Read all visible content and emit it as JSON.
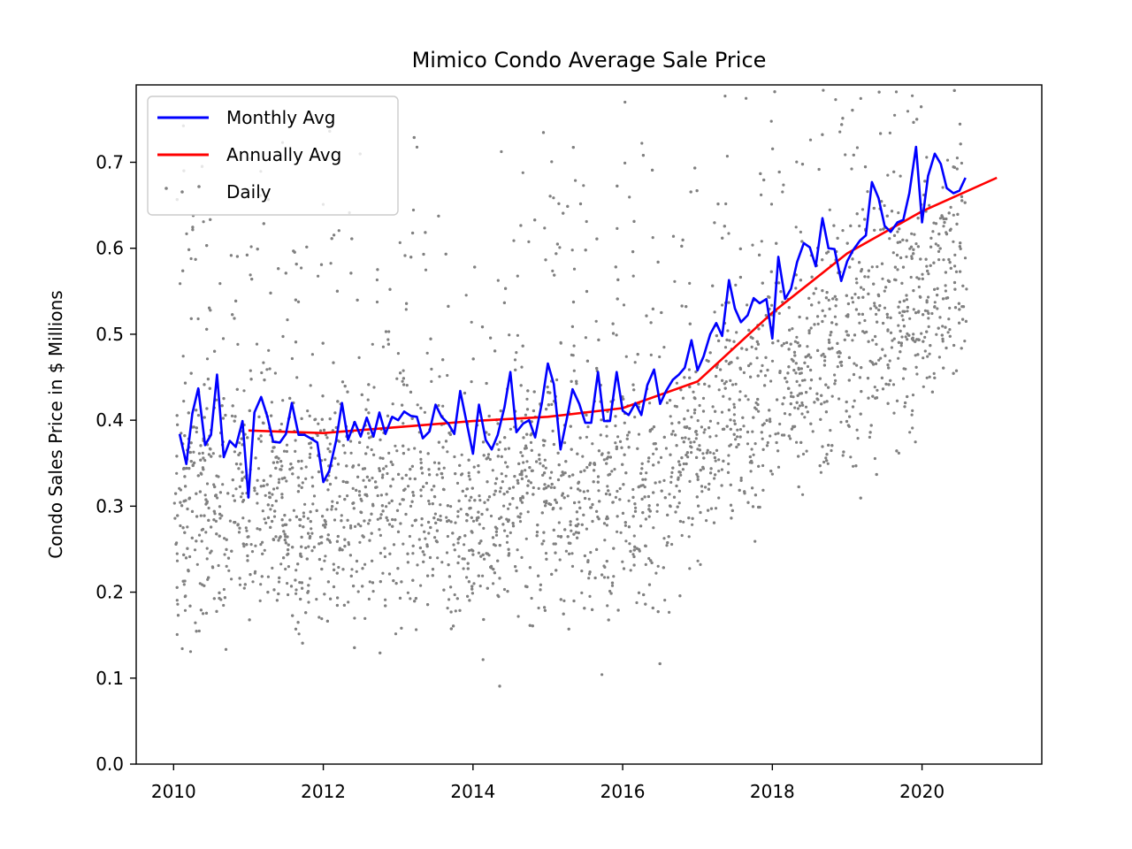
{
  "chart_data": {
    "type": "line",
    "title": "Mimico Condo Average Sale Price",
    "xlabel": "",
    "ylabel": "Condo Sales Price in $ Millions",
    "xlim": [
      2009.5,
      2021.6
    ],
    "ylim": [
      0.0,
      0.79
    ],
    "x_ticks": [
      2010,
      2012,
      2014,
      2016,
      2018,
      2020
    ],
    "y_ticks": [
      0.0,
      0.1,
      0.2,
      0.3,
      0.4,
      0.5,
      0.6,
      0.7
    ],
    "x_tick_labels": [
      "2010",
      "2012",
      "2014",
      "2016",
      "2018",
      "2020"
    ],
    "y_tick_labels": [
      "0.0",
      "0.1",
      "0.2",
      "0.3",
      "0.4",
      "0.5",
      "0.6",
      "0.7"
    ],
    "grid": false,
    "legend_position": "upper-left",
    "colors": {
      "monthly": "#0000ff",
      "annual": "#ff0000",
      "daily": "#808080"
    },
    "series": [
      {
        "name": "Monthly Avg",
        "kind": "line",
        "x": [
          2010.08,
          2010.17,
          2010.25,
          2010.33,
          2010.42,
          2010.5,
          2010.58,
          2010.67,
          2010.75,
          2010.83,
          2010.92,
          2011.0,
          2011.08,
          2011.17,
          2011.25,
          2011.33,
          2011.42,
          2011.5,
          2011.58,
          2011.67,
          2011.75,
          2011.83,
          2011.92,
          2012.0,
          2012.08,
          2012.17,
          2012.25,
          2012.33,
          2012.42,
          2012.5,
          2012.58,
          2012.67,
          2012.75,
          2012.83,
          2012.92,
          2013.0,
          2013.08,
          2013.17,
          2013.25,
          2013.33,
          2013.42,
          2013.5,
          2013.58,
          2013.67,
          2013.75,
          2013.83,
          2013.92,
          2014.0,
          2014.08,
          2014.17,
          2014.25,
          2014.33,
          2014.42,
          2014.5,
          2014.58,
          2014.67,
          2014.75,
          2014.83,
          2014.92,
          2015.0,
          2015.08,
          2015.17,
          2015.25,
          2015.33,
          2015.42,
          2015.5,
          2015.58,
          2015.67,
          2015.75,
          2015.83,
          2015.92,
          2016.0,
          2016.08,
          2016.17,
          2016.25,
          2016.33,
          2016.42,
          2016.5,
          2016.58,
          2016.67,
          2016.75,
          2016.83,
          2016.92,
          2017.0,
          2017.08,
          2017.17,
          2017.25,
          2017.33,
          2017.42,
          2017.5,
          2017.58,
          2017.67,
          2017.75,
          2017.83,
          2017.92,
          2018.0,
          2018.08,
          2018.17,
          2018.25,
          2018.33,
          2018.42,
          2018.5,
          2018.58,
          2018.67,
          2018.75,
          2018.83,
          2018.92,
          2019.0,
          2019.08,
          2019.17,
          2019.25,
          2019.33,
          2019.42,
          2019.5,
          2019.58,
          2019.67,
          2019.75,
          2019.83,
          2019.92,
          2020.0,
          2020.08,
          2020.17,
          2020.25,
          2020.33,
          2020.42,
          2020.5,
          2020.58
        ],
        "y": [
          0.384,
          0.349,
          0.408,
          0.437,
          0.371,
          0.383,
          0.453,
          0.357,
          0.376,
          0.369,
          0.399,
          0.31,
          0.409,
          0.427,
          0.405,
          0.375,
          0.374,
          0.384,
          0.42,
          0.383,
          0.383,
          0.379,
          0.374,
          0.328,
          0.341,
          0.376,
          0.42,
          0.377,
          0.398,
          0.381,
          0.403,
          0.381,
          0.409,
          0.384,
          0.404,
          0.4,
          0.41,
          0.405,
          0.404,
          0.379,
          0.387,
          0.418,
          0.404,
          0.396,
          0.384,
          0.434,
          0.395,
          0.361,
          0.418,
          0.377,
          0.366,
          0.383,
          0.415,
          0.456,
          0.386,
          0.396,
          0.4,
          0.38,
          0.42,
          0.466,
          0.442,
          0.366,
          0.4,
          0.436,
          0.419,
          0.397,
          0.397,
          0.456,
          0.399,
          0.399,
          0.456,
          0.411,
          0.406,
          0.42,
          0.406,
          0.441,
          0.459,
          0.419,
          0.434,
          0.447,
          0.453,
          0.461,
          0.493,
          0.458,
          0.474,
          0.5,
          0.513,
          0.498,
          0.563,
          0.53,
          0.514,
          0.522,
          0.542,
          0.536,
          0.541,
          0.495,
          0.59,
          0.541,
          0.553,
          0.584,
          0.606,
          0.601,
          0.579,
          0.635,
          0.6,
          0.599,
          0.562,
          0.585,
          0.598,
          0.609,
          0.615,
          0.677,
          0.658,
          0.626,
          0.619,
          0.63,
          0.633,
          0.664,
          0.718,
          0.63,
          0.684,
          0.71,
          0.698,
          0.67,
          0.664,
          0.667,
          0.682
        ]
      },
      {
        "name": "Annually Avg",
        "kind": "line",
        "x": [
          2011.0,
          2012.0,
          2013.0,
          2014.0,
          2015.0,
          2016.0,
          2017.0,
          2018.0,
          2019.0,
          2020.0,
          2021.0
        ],
        "y": [
          0.388,
          0.385,
          0.392,
          0.399,
          0.404,
          0.414,
          0.445,
          0.525,
          0.594,
          0.643,
          0.682
        ]
      },
      {
        "name": "Daily",
        "kind": "scatter",
        "trend_x": [
          2010.0,
          2011.0,
          2011.7,
          2012.5,
          2013.3,
          2013.8,
          2014.2,
          2014.7,
          2015.3,
          2015.8,
          2016.3,
          2016.7,
          2017.3,
          2017.7,
          2018.3,
          2018.7,
          2019.3,
          2019.8,
          2020.3,
          2020.6
        ],
        "trend_y": [
          0.3,
          0.31,
          0.3,
          0.3,
          0.3,
          0.29,
          0.31,
          0.32,
          0.32,
          0.31,
          0.33,
          0.33,
          0.4,
          0.42,
          0.45,
          0.47,
          0.5,
          0.53,
          0.57,
          0.59
        ],
        "spread_y": 0.07
      }
    ]
  }
}
